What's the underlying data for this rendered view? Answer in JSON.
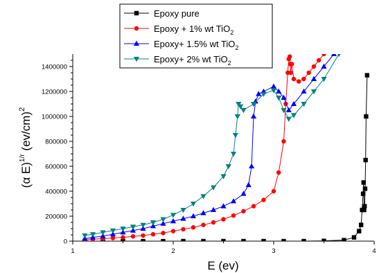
{
  "chart_data": {
    "type": "line",
    "xlabel": "E (ev)",
    "ylabel": "(αE)^1/r (ev/cm)^2",
    "ylabel_parts": {
      "base": "(α E)",
      "sup": "1/r",
      "unit": " (ev/cm)",
      "unit_sup": "2"
    },
    "xlim": [
      1,
      4
    ],
    "ylim": [
      0,
      1500000
    ],
    "xticks": [
      1,
      2,
      3,
      4
    ],
    "xtick_labels": [
      "1",
      "2",
      "3",
      "4"
    ],
    "yticks": [
      0,
      200000,
      400000,
      600000,
      800000,
      1000000,
      1200000,
      1400000
    ],
    "ytick_labels": [
      "0",
      "200000",
      "400000",
      "600000",
      "800000",
      "1000000",
      "1200000",
      "1400000"
    ],
    "grid": false,
    "legend_position": "top-center",
    "series": [
      {
        "name": "Epoxy pure",
        "legend_main": "Epoxy pure",
        "legend_sub": "",
        "color": "#000000",
        "marker": "square",
        "x": [
          1.12,
          1.3,
          1.5,
          1.7,
          1.9,
          2.1,
          2.3,
          2.5,
          2.7,
          2.9,
          3.1,
          3.3,
          3.5,
          3.7,
          3.8,
          3.85,
          3.87,
          3.88,
          3.89,
          3.895,
          3.9,
          3.905,
          3.91,
          3.915,
          3.92,
          3.93
        ],
        "y": [
          0,
          0,
          0,
          0,
          0,
          0,
          0,
          0,
          0,
          0,
          0,
          0,
          2000,
          8000,
          30000,
          80000,
          130000,
          250000,
          380000,
          470000,
          250000,
          280000,
          420000,
          650000,
          1000000,
          1330000
        ]
      },
      {
        "name": "Epoxy + 1% wt TiO2",
        "legend_main": "Epoxy + 1% wt TiO",
        "legend_sub": "2",
        "color": "#ff0000",
        "marker": "circle",
        "x": [
          1.12,
          1.2,
          1.3,
          1.4,
          1.5,
          1.6,
          1.7,
          1.8,
          1.9,
          2.0,
          2.1,
          2.2,
          2.3,
          2.4,
          2.5,
          2.6,
          2.7,
          2.8,
          2.9,
          3.0,
          3.05,
          3.1,
          3.12,
          3.14,
          3.15,
          3.16,
          3.165,
          3.17,
          3.18,
          3.2,
          3.25,
          3.3,
          3.35,
          3.4,
          3.45,
          3.5
        ],
        "y": [
          10000,
          15000,
          20000,
          25000,
          30000,
          38000,
          45000,
          55000,
          65000,
          80000,
          95000,
          110000,
          130000,
          150000,
          175000,
          205000,
          240000,
          280000,
          330000,
          400000,
          550000,
          800000,
          1100000,
          1350000,
          1460000,
          1480000,
          1420000,
          1350000,
          1420000,
          1300000,
          1280000,
          1300000,
          1350000,
          1400000,
          1450000,
          1500000
        ]
      },
      {
        "name": "Epoxy+ 1.5% wt TiO2",
        "legend_main": "Epoxy+ 1.5% wt  TiO",
        "legend_sub": "2",
        "color": "#0000ff",
        "marker": "triangle",
        "x": [
          1.12,
          1.2,
          1.3,
          1.4,
          1.5,
          1.6,
          1.7,
          1.8,
          1.9,
          2.0,
          2.1,
          2.2,
          2.3,
          2.4,
          2.5,
          2.6,
          2.7,
          2.75,
          2.78,
          2.8,
          2.82,
          2.85,
          2.9,
          3.0,
          3.05,
          3.1,
          3.15,
          3.2,
          3.3,
          3.4,
          3.5,
          3.6
        ],
        "y": [
          20000,
          30000,
          40000,
          55000,
          70000,
          85000,
          100000,
          120000,
          140000,
          160000,
          180000,
          200000,
          225000,
          250000,
          280000,
          320000,
          380000,
          450000,
          600000,
          1000000,
          1120000,
          1180000,
          1200000,
          1240000,
          1200000,
          1150000,
          1050000,
          1100000,
          1200000,
          1300000,
          1400000,
          1500000
        ]
      },
      {
        "name": "Epoxy+ 2% wt TiO2",
        "legend_main": "Epoxy+ 2% wt TiO",
        "legend_sub": "2",
        "color": "#008080",
        "marker": "inverted-triangle",
        "x": [
          1.12,
          1.2,
          1.3,
          1.4,
          1.5,
          1.6,
          1.7,
          1.8,
          1.9,
          2.0,
          2.1,
          2.2,
          2.3,
          2.4,
          2.5,
          2.55,
          2.6,
          2.62,
          2.64,
          2.65,
          2.67,
          2.7,
          2.8,
          2.9,
          3.0,
          3.05,
          3.1,
          3.15,
          3.2,
          3.3,
          3.4,
          3.5,
          3.65
        ],
        "y": [
          45000,
          55000,
          70000,
          85000,
          100000,
          115000,
          130000,
          150000,
          175000,
          210000,
          250000,
          300000,
          360000,
          430000,
          520000,
          600000,
          700000,
          850000,
          1000000,
          1100000,
          1080000,
          1050000,
          1100000,
          1180000,
          1210000,
          1150000,
          1050000,
          980000,
          1010000,
          1100000,
          1200000,
          1300000,
          1500000
        ]
      }
    ]
  }
}
